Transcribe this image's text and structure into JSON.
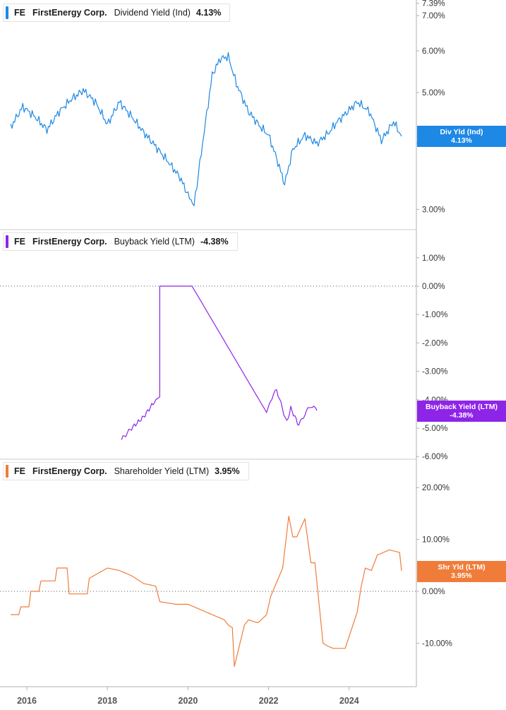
{
  "x_ticks": [
    "2016",
    "2018",
    "2020",
    "2022",
    "2024"
  ],
  "chart_data": [
    {
      "type": "line",
      "legend": {
        "ticker": "FE",
        "company": "FirstEnergy Corp.",
        "metric": "Dividend Yield (Ind)",
        "value": "4.13%"
      },
      "tag": {
        "label": "Div Yld (Ind)",
        "value": "4.13%"
      },
      "color": "#1e88e5",
      "scale": "log",
      "y_ticks": [
        "7.39%",
        "7.00%",
        "6.00%",
        "5.00%",
        "4.00%",
        "3.00%"
      ],
      "y_tick_values": [
        7.39,
        7.0,
        6.0,
        5.0,
        4.0,
        3.0
      ],
      "x": [
        2015.6,
        2015.9,
        2016.2,
        2016.5,
        2016.8,
        2017.1,
        2017.4,
        2017.7,
        2018.0,
        2018.3,
        2018.6,
        2018.9,
        2019.2,
        2019.5,
        2019.8,
        2020.0,
        2020.15,
        2020.4,
        2020.6,
        2020.8,
        2021.0,
        2021.2,
        2021.5,
        2021.8,
        2022.0,
        2022.2,
        2022.4,
        2022.6,
        2022.9,
        2023.2,
        2023.5,
        2023.7,
        2023.9,
        2024.2,
        2024.5,
        2024.8,
        2025.1,
        2025.3
      ],
      "values": [
        4.3,
        4.7,
        4.5,
        4.25,
        4.6,
        4.85,
        5.05,
        4.8,
        4.35,
        4.8,
        4.5,
        4.2,
        3.95,
        3.7,
        3.45,
        3.2,
        3.05,
        4.2,
        5.4,
        5.8,
        5.85,
        5.2,
        4.6,
        4.3,
        4.15,
        3.75,
        3.35,
        3.9,
        4.15,
        4.0,
        4.2,
        4.4,
        4.55,
        4.8,
        4.6,
        4.05,
        4.4,
        4.13
      ]
    },
    {
      "type": "line",
      "legend": {
        "ticker": "FE",
        "company": "FirstEnergy Corp.",
        "metric": "Buyback Yield (LTM)",
        "value": "-4.38%"
      },
      "tag": {
        "label": "Buyback Yield (LTM)",
        "value": "-4.38%"
      },
      "color": "#8e24e8",
      "scale": "linear",
      "y_ticks": [
        "1.00%",
        "0.00%",
        "-1.00%",
        "-2.00%",
        "-3.00%",
        "-4.00%",
        "-5.00%",
        "-6.00%"
      ],
      "y_tick_values": [
        1,
        0,
        -1,
        -2,
        -3,
        -4,
        -5,
        -6
      ],
      "x": [
        2018.35,
        2018.6,
        2018.9,
        2019.2,
        2019.3,
        2019.3,
        2020.1,
        2021.95,
        2022.05,
        2022.2,
        2022.45,
        2022.55,
        2022.75,
        2022.9,
        2023.05,
        2023.2
      ],
      "values": [
        -5.4,
        -5.0,
        -4.6,
        -4.0,
        -3.9,
        0.0,
        0.0,
        -4.45,
        -4.0,
        -3.65,
        -4.8,
        -4.3,
        -4.9,
        -4.5,
        -4.2,
        -4.38
      ]
    },
    {
      "type": "line",
      "legend": {
        "ticker": "FE",
        "company": "FirstEnergy Corp.",
        "metric": "Shareholder Yield (LTM)",
        "value": "3.95%"
      },
      "tag": {
        "label": "Shr Yld (LTM)",
        "value": "3.95%"
      },
      "color": "#f07c3a",
      "scale": "linear",
      "y_ticks": [
        "20.00%",
        "10.00%",
        "0.00%",
        "-10.00%"
      ],
      "y_tick_values": [
        20,
        10,
        0,
        -10
      ],
      "x": [
        2015.6,
        2015.8,
        2015.85,
        2016.05,
        2016.1,
        2016.3,
        2016.35,
        2016.7,
        2016.75,
        2017.0,
        2017.05,
        2017.5,
        2017.55,
        2018.0,
        2018.3,
        2018.6,
        2018.9,
        2019.2,
        2019.3,
        2019.7,
        2020.0,
        2020.3,
        2020.6,
        2020.9,
        2021.0,
        2021.1,
        2021.15,
        2021.4,
        2021.5,
        2021.7,
        2021.75,
        2021.95,
        2022.05,
        2022.35,
        2022.5,
        2022.6,
        2022.7,
        2022.9,
        2023.05,
        2023.15,
        2023.35,
        2023.45,
        2023.6,
        2023.9,
        2024.2,
        2024.3,
        2024.4,
        2024.55,
        2024.7,
        2025.0,
        2025.25,
        2025.3
      ],
      "values": [
        -4.5,
        -4.5,
        -3.0,
        -3.0,
        0.0,
        0.0,
        2.0,
        2.0,
        4.5,
        4.5,
        -0.5,
        -0.5,
        2.5,
        4.5,
        4.0,
        3.0,
        1.5,
        1.0,
        -2.0,
        -2.5,
        -2.5,
        -3.5,
        -4.5,
        -5.5,
        -6.5,
        -7.0,
        -14.5,
        -6.5,
        -5.5,
        -6.0,
        -6.0,
        -4.5,
        -1.0,
        4.5,
        14.5,
        10.5,
        10.5,
        14.0,
        5.5,
        5.5,
        -10.0,
        -10.5,
        -11.0,
        -11.0,
        -4.0,
        1.0,
        4.5,
        4.0,
        7.0,
        8.0,
        7.5,
        3.95
      ]
    }
  ]
}
